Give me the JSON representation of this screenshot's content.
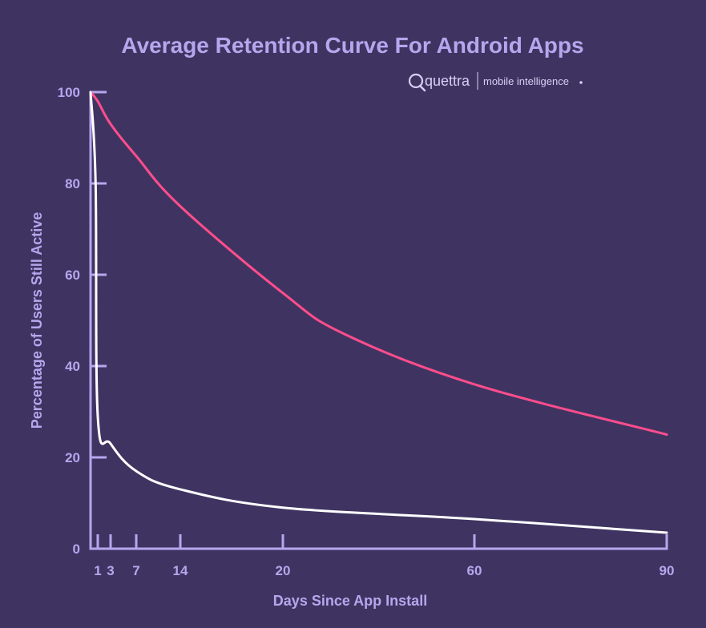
{
  "chart_data": {
    "type": "line",
    "title": "Average Retention Curve For Android Apps",
    "xlabel": "Days Since App Install",
    "ylabel": "Percentage of Users Still Active",
    "x_ticks": [
      1,
      3,
      7,
      14,
      20,
      60,
      90
    ],
    "y_ticks": [
      0,
      20,
      40,
      60,
      80,
      100
    ],
    "ylim": [
      0,
      100
    ],
    "x_axis_note": "non-linear day axis",
    "grid": false,
    "series": [
      {
        "color": "#ff4d8d",
        "x": [
          0,
          1,
          3,
          7,
          14,
          20,
          30,
          60,
          90
        ],
        "y": [
          100,
          98,
          93,
          86,
          75,
          56,
          47,
          36,
          25
        ]
      },
      {
        "color": "#ffffff",
        "x": [
          0,
          0.7,
          1,
          3,
          7,
          14,
          20,
          60,
          90
        ],
        "y": [
          100,
          80,
          29,
          23,
          17,
          13,
          9,
          6.5,
          3.5
        ]
      }
    ],
    "colors": {
      "background": "#3f3461",
      "axis": "#b7a6ee",
      "text": "#b7a6ee"
    }
  },
  "logo": {
    "word": "quettra",
    "tagline": "mobile intelligence"
  }
}
